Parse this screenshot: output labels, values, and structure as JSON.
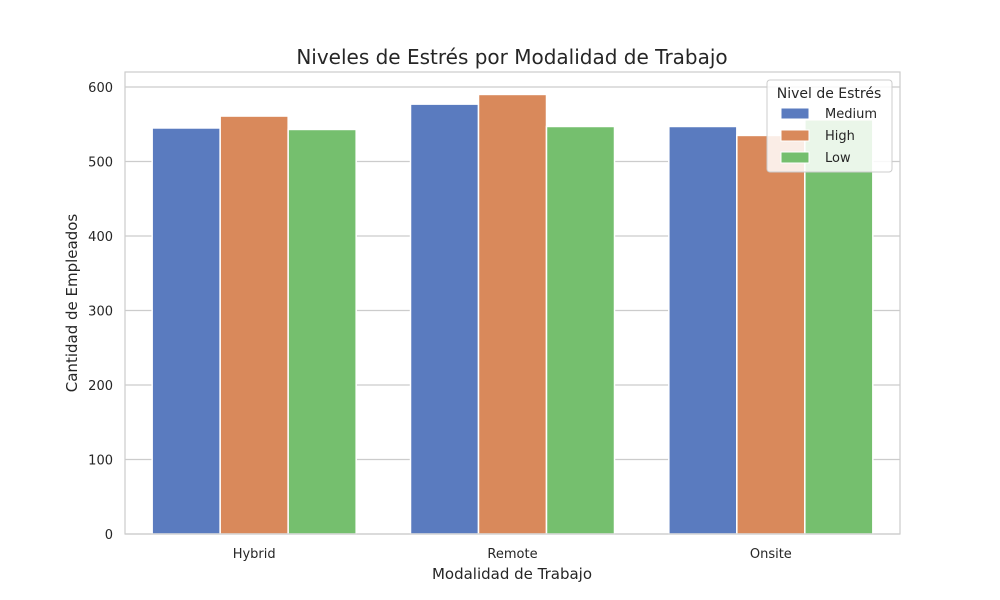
{
  "chart_data": {
    "type": "bar",
    "title": "Niveles de Estrés por Modalidad de Trabajo",
    "xlabel": "Modalidad de Trabajo",
    "ylabel": "Cantidad de Empleados",
    "categories": [
      "Hybrid",
      "Remote",
      "Onsite"
    ],
    "ylim": [
      0,
      620
    ],
    "yticks": [
      0,
      100,
      200,
      300,
      400,
      500,
      600
    ],
    "grid": true,
    "legend": {
      "title": "Nivel de Estrés",
      "placement": "top-right"
    },
    "series": [
      {
        "name": "Medium",
        "color": "#5a7bbf",
        "values": [
          545,
          577,
          547
        ]
      },
      {
        "name": "High",
        "color": "#d9895b",
        "values": [
          561,
          590,
          535
        ]
      },
      {
        "name": "Low",
        "color": "#75bf6e",
        "values": [
          543,
          547,
          556
        ]
      }
    ]
  }
}
